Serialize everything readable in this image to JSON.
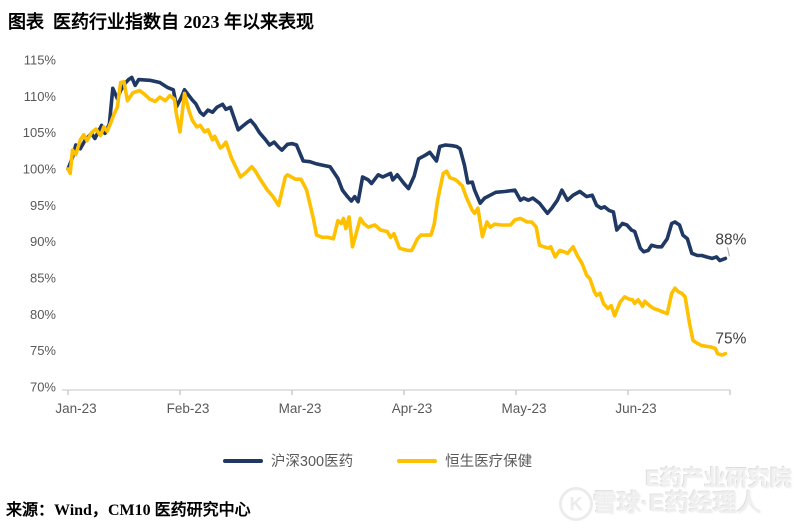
{
  "header": {
    "title": "图表  医药行业指数自 2023 年以来表现"
  },
  "footer": {
    "source": "来源：Wind，CM10 医药研究中心"
  },
  "watermark": {
    "logo": "snowball-logo",
    "line1": "E药产业研究院",
    "line2": "雪球·E药经理人",
    "logo_glyph": "K"
  },
  "colors": {
    "hs300_line": "#1F3864",
    "hsi_line": "#FFC000",
    "axis_line": "#D9D9D9",
    "tick_mark": "#BFBFBF",
    "axis_text": "#595959",
    "end_label_text": "#404040",
    "leader_line": "#A6A6A6",
    "background": "#FFFFFF"
  },
  "chart_data": {
    "type": "line",
    "title": "医药行业指数自 2023 年以来表现",
    "xlabel": "",
    "ylabel": "",
    "x_unit": "months since Jan-2023",
    "x_ticks": [
      "Jan-23",
      "Feb-23",
      "Mar-23",
      "Apr-23",
      "May-23",
      "Jun-23"
    ],
    "y_ticks": [
      "115%",
      "110%",
      "105%",
      "100%",
      "95%",
      "90%",
      "85%",
      "80%",
      "75%",
      "70%"
    ],
    "ylim": [
      70,
      115
    ],
    "xlim": [
      0,
      5.95
    ],
    "grid": false,
    "legend_position": "bottom",
    "end_labels": [
      {
        "series": "沪深300医药",
        "text": "88%"
      },
      {
        "series": "恒生医疗保健",
        "text": "75%"
      }
    ],
    "series": [
      {
        "name": "沪深300医药",
        "color": "#1F3864",
        "points": [
          [
            0,
            100.0
          ],
          [
            0.04,
            101.6
          ],
          [
            0.07,
            103.3
          ],
          [
            0.11,
            102.8
          ],
          [
            0.15,
            103.9
          ],
          [
            0.21,
            104.9
          ],
          [
            0.24,
            104.2
          ],
          [
            0.3,
            106.0
          ],
          [
            0.33,
            104.9
          ],
          [
            0.37,
            106.2
          ],
          [
            0.4,
            111.1
          ],
          [
            0.44,
            109.7
          ],
          [
            0.47,
            110.8
          ],
          [
            0.51,
            111.8
          ],
          [
            0.54,
            112.3
          ],
          [
            0.57,
            112.6
          ],
          [
            0.6,
            111.5
          ],
          [
            0.63,
            112.3
          ],
          [
            0.73,
            112.2
          ],
          [
            0.82,
            111.9
          ],
          [
            0.89,
            111.2
          ],
          [
            0.94,
            110.9
          ],
          [
            0.97,
            108.6
          ],
          [
            1.01,
            109.8
          ],
          [
            1.04,
            110.9
          ],
          [
            1.11,
            109.5
          ],
          [
            1.14,
            109.0
          ],
          [
            1.18,
            107.8
          ],
          [
            1.21,
            107.4
          ],
          [
            1.25,
            108.1
          ],
          [
            1.29,
            107.8
          ],
          [
            1.33,
            108.5
          ],
          [
            1.38,
            108.9
          ],
          [
            1.41,
            108.2
          ],
          [
            1.45,
            108.5
          ],
          [
            1.52,
            105.4
          ],
          [
            1.56,
            105.9
          ],
          [
            1.6,
            106.4
          ],
          [
            1.63,
            106.7
          ],
          [
            1.67,
            106.0
          ],
          [
            1.71,
            105.0
          ],
          [
            1.76,
            104.1
          ],
          [
            1.8,
            103.3
          ],
          [
            1.84,
            103.7
          ],
          [
            1.88,
            103.0
          ],
          [
            1.91,
            102.6
          ],
          [
            1.96,
            103.4
          ],
          [
            2.0,
            103.5
          ],
          [
            2.04,
            103.3
          ],
          [
            2.1,
            101.1
          ],
          [
            2.16,
            101.0
          ],
          [
            2.22,
            100.7
          ],
          [
            2.28,
            100.5
          ],
          [
            2.34,
            100.3
          ],
          [
            2.41,
            98.7
          ],
          [
            2.45,
            97.1
          ],
          [
            2.49,
            96.3
          ],
          [
            2.53,
            95.6
          ],
          [
            2.56,
            96.2
          ],
          [
            2.59,
            95.5
          ],
          [
            2.63,
            98.9
          ],
          [
            2.68,
            98.5
          ],
          [
            2.71,
            98.0
          ],
          [
            2.77,
            99.2
          ],
          [
            2.81,
            98.9
          ],
          [
            2.88,
            99.4
          ],
          [
            2.9,
            98.5
          ],
          [
            2.94,
            99.2
          ],
          [
            3.0,
            98.0
          ],
          [
            3.04,
            97.3
          ],
          [
            3.09,
            99.0
          ],
          [
            3.13,
            101.4
          ],
          [
            3.19,
            101.9
          ],
          [
            3.23,
            102.3
          ],
          [
            3.29,
            101.1
          ],
          [
            3.32,
            103.1
          ],
          [
            3.37,
            103.3
          ],
          [
            3.43,
            103.2
          ],
          [
            3.47,
            103.1
          ],
          [
            3.5,
            102.8
          ],
          [
            3.54,
            100.5
          ],
          [
            3.57,
            98.1
          ],
          [
            3.61,
            98.2
          ],
          [
            3.63,
            97.1
          ],
          [
            3.68,
            95.3
          ],
          [
            3.72,
            96.0
          ],
          [
            3.77,
            96.4
          ],
          [
            3.82,
            96.8
          ],
          [
            3.9,
            96.9
          ],
          [
            3.99,
            97.1
          ],
          [
            4.04,
            95.7
          ],
          [
            4.07,
            96.0
          ],
          [
            4.11,
            95.7
          ],
          [
            4.15,
            96.0
          ],
          [
            4.21,
            95.3
          ],
          [
            4.28,
            93.9
          ],
          [
            4.32,
            94.6
          ],
          [
            4.37,
            95.7
          ],
          [
            4.41,
            97.1
          ],
          [
            4.46,
            95.7
          ],
          [
            4.51,
            96.4
          ],
          [
            4.57,
            96.9
          ],
          [
            4.63,
            96.2
          ],
          [
            4.68,
            96.4
          ],
          [
            4.72,
            95.0
          ],
          [
            4.76,
            94.6
          ],
          [
            4.79,
            94.8
          ],
          [
            4.83,
            94.3
          ],
          [
            4.87,
            94.1
          ],
          [
            4.9,
            91.6
          ],
          [
            4.95,
            92.5
          ],
          [
            4.99,
            92.3
          ],
          [
            5.03,
            91.6
          ],
          [
            5.06,
            91.4
          ],
          [
            5.11,
            89.1
          ],
          [
            5.14,
            88.6
          ],
          [
            5.18,
            88.8
          ],
          [
            5.21,
            89.5
          ],
          [
            5.26,
            89.3
          ],
          [
            5.3,
            89.3
          ],
          [
            5.35,
            90.4
          ],
          [
            5.39,
            92.5
          ],
          [
            5.42,
            92.7
          ],
          [
            5.46,
            92.3
          ],
          [
            5.49,
            90.9
          ],
          [
            5.53,
            90.4
          ],
          [
            5.57,
            88.4
          ],
          [
            5.62,
            88.1
          ],
          [
            5.66,
            88.1
          ],
          [
            5.7,
            87.9
          ],
          [
            5.75,
            87.7
          ],
          [
            5.79,
            87.9
          ],
          [
            5.82,
            87.4
          ],
          [
            5.87,
            87.7
          ]
        ]
      },
      {
        "name": "恒生医疗保健",
        "color": "#FFC000",
        "points": [
          [
            0,
            100.0
          ],
          [
            0.02,
            99.4
          ],
          [
            0.04,
            102.6
          ],
          [
            0.07,
            102.0
          ],
          [
            0.11,
            104.0
          ],
          [
            0.14,
            104.7
          ],
          [
            0.17,
            103.9
          ],
          [
            0.21,
            105.0
          ],
          [
            0.25,
            105.5
          ],
          [
            0.29,
            104.6
          ],
          [
            0.32,
            105.8
          ],
          [
            0.35,
            105.2
          ],
          [
            0.38,
            106.3
          ],
          [
            0.41,
            107.5
          ],
          [
            0.44,
            108.5
          ],
          [
            0.47,
            111.9
          ],
          [
            0.5,
            112.0
          ],
          [
            0.53,
            109.4
          ],
          [
            0.58,
            110.5
          ],
          [
            0.64,
            110.8
          ],
          [
            0.69,
            110.2
          ],
          [
            0.73,
            109.6
          ],
          [
            0.78,
            109.3
          ],
          [
            0.82,
            109.9
          ],
          [
            0.87,
            109.4
          ],
          [
            0.91,
            110.1
          ],
          [
            0.95,
            109.6
          ],
          [
            0.97,
            107.4
          ],
          [
            1.0,
            105.1
          ],
          [
            1.04,
            110.4
          ],
          [
            1.08,
            108.0
          ],
          [
            1.11,
            106.7
          ],
          [
            1.15,
            105.8
          ],
          [
            1.18,
            106.0
          ],
          [
            1.22,
            105.1
          ],
          [
            1.25,
            105.4
          ],
          [
            1.29,
            104.0
          ],
          [
            1.31,
            104.5
          ],
          [
            1.36,
            102.9
          ],
          [
            1.38,
            103.1
          ],
          [
            1.41,
            103.7
          ],
          [
            1.46,
            101.5
          ],
          [
            1.54,
            98.9
          ],
          [
            1.58,
            99.4
          ],
          [
            1.64,
            100.3
          ],
          [
            1.67,
            99.8
          ],
          [
            1.72,
            98.5
          ],
          [
            1.78,
            97.1
          ],
          [
            1.83,
            96.2
          ],
          [
            1.88,
            95.0
          ],
          [
            1.94,
            98.9
          ],
          [
            1.96,
            99.2
          ],
          [
            2.03,
            98.6
          ],
          [
            2.08,
            98.6
          ],
          [
            2.13,
            97.1
          ],
          [
            2.16,
            95.2
          ],
          [
            2.19,
            93.2
          ],
          [
            2.22,
            90.9
          ],
          [
            2.27,
            90.6
          ],
          [
            2.32,
            90.6
          ],
          [
            2.37,
            90.4
          ],
          [
            2.41,
            92.9
          ],
          [
            2.44,
            92.5
          ],
          [
            2.46,
            93.2
          ],
          [
            2.48,
            91.8
          ],
          [
            2.51,
            93.4
          ],
          [
            2.54,
            89.3
          ],
          [
            2.61,
            93.2
          ],
          [
            2.64,
            92.5
          ],
          [
            2.68,
            92.0
          ],
          [
            2.74,
            92.3
          ],
          [
            2.79,
            91.6
          ],
          [
            2.85,
            91.4
          ],
          [
            2.88,
            90.6
          ],
          [
            2.91,
            91.1
          ],
          [
            2.96,
            89.1
          ],
          [
            3.03,
            88.8
          ],
          [
            3.07,
            88.8
          ],
          [
            3.12,
            90.4
          ],
          [
            3.15,
            90.9
          ],
          [
            3.24,
            90.9
          ],
          [
            3.27,
            92.4
          ],
          [
            3.3,
            95.7
          ],
          [
            3.35,
            99.4
          ],
          [
            3.38,
            99.7
          ],
          [
            3.41,
            98.8
          ],
          [
            3.45,
            98.6
          ],
          [
            3.47,
            98.4
          ],
          [
            3.52,
            97.7
          ],
          [
            3.56,
            96.0
          ],
          [
            3.61,
            94.3
          ],
          [
            3.63,
            93.9
          ],
          [
            3.66,
            94.6
          ],
          [
            3.7,
            90.7
          ],
          [
            3.74,
            92.7
          ],
          [
            3.77,
            92.0
          ],
          [
            3.81,
            92.4
          ],
          [
            3.87,
            92.3
          ],
          [
            3.95,
            92.3
          ],
          [
            3.99,
            93.0
          ],
          [
            4.04,
            93.2
          ],
          [
            4.1,
            92.7
          ],
          [
            4.14,
            92.7
          ],
          [
            4.18,
            92.0
          ],
          [
            4.21,
            89.5
          ],
          [
            4.25,
            89.3
          ],
          [
            4.29,
            89.1
          ],
          [
            4.31,
            89.3
          ],
          [
            4.35,
            87.9
          ],
          [
            4.39,
            88.8
          ],
          [
            4.43,
            88.6
          ],
          [
            4.46,
            88.4
          ],
          [
            4.51,
            89.3
          ],
          [
            4.55,
            88.0
          ],
          [
            4.59,
            87.0
          ],
          [
            4.63,
            85.4
          ],
          [
            4.66,
            84.9
          ],
          [
            4.7,
            83.1
          ],
          [
            4.72,
            82.6
          ],
          [
            4.75,
            82.9
          ],
          [
            4.78,
            81.5
          ],
          [
            4.82,
            80.8
          ],
          [
            4.85,
            81.2
          ],
          [
            4.88,
            79.8
          ],
          [
            4.93,
            81.7
          ],
          [
            4.97,
            82.4
          ],
          [
            5.01,
            82.1
          ],
          [
            5.04,
            82.0
          ],
          [
            5.06,
            81.5
          ],
          [
            5.09,
            82.0
          ],
          [
            5.13,
            81.1
          ],
          [
            5.15,
            81.8
          ],
          [
            5.2,
            81.1
          ],
          [
            5.23,
            80.8
          ],
          [
            5.27,
            80.6
          ],
          [
            5.3,
            80.4
          ],
          [
            5.35,
            80.1
          ],
          [
            5.39,
            82.9
          ],
          [
            5.42,
            83.6
          ],
          [
            5.45,
            83.1
          ],
          [
            5.48,
            82.9
          ],
          [
            5.51,
            82.4
          ],
          [
            5.55,
            78.7
          ],
          [
            5.58,
            76.4
          ],
          [
            5.62,
            76.0
          ],
          [
            5.66,
            75.7
          ],
          [
            5.7,
            75.6
          ],
          [
            5.74,
            75.5
          ],
          [
            5.78,
            75.3
          ],
          [
            5.8,
            74.6
          ],
          [
            5.84,
            74.4
          ],
          [
            5.87,
            74.6
          ]
        ]
      }
    ]
  }
}
